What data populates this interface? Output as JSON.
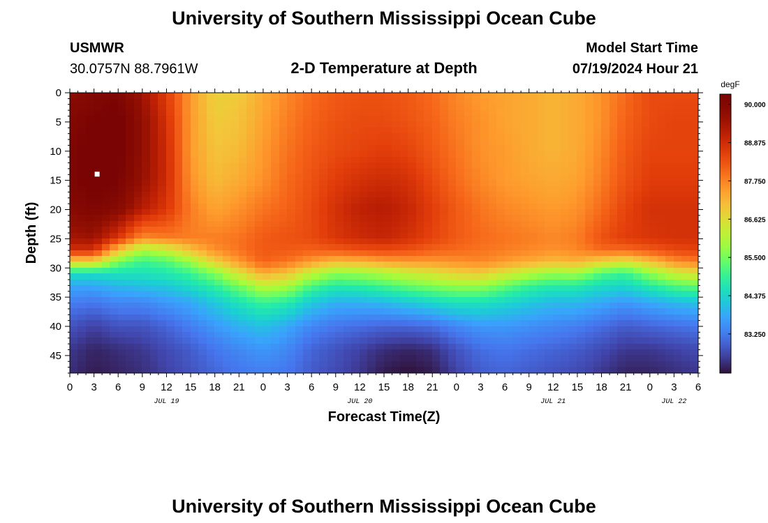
{
  "header": {
    "title": "University of Southern Mississippi Ocean Cube",
    "station": "USMWR",
    "location": "30.0757N  88.7961W",
    "model_start_label": "Model Start Time",
    "model_start_value": "07/19/2024 Hour 21"
  },
  "footer": {
    "title": "University of Southern Mississippi Ocean Cube"
  },
  "chart_data": {
    "type": "heatmap",
    "title": "2-D Temperature at Depth",
    "xlabel": "Forecast Time(Z)",
    "ylabel": "Depth (ft)",
    "units": "degF",
    "x_hours_range": [
      0,
      78
    ],
    "x_ticks": [
      {
        "hour": 0,
        "label": "0"
      },
      {
        "hour": 3,
        "label": "3"
      },
      {
        "hour": 6,
        "label": "6"
      },
      {
        "hour": 9,
        "label": "9"
      },
      {
        "hour": 12,
        "label": "12"
      },
      {
        "hour": 15,
        "label": "15"
      },
      {
        "hour": 18,
        "label": "18"
      },
      {
        "hour": 21,
        "label": "21"
      },
      {
        "hour": 24,
        "label": "0"
      },
      {
        "hour": 27,
        "label": "3"
      },
      {
        "hour": 30,
        "label": "6"
      },
      {
        "hour": 33,
        "label": "9"
      },
      {
        "hour": 36,
        "label": "12"
      },
      {
        "hour": 39,
        "label": "15"
      },
      {
        "hour": 42,
        "label": "18"
      },
      {
        "hour": 45,
        "label": "21"
      },
      {
        "hour": 48,
        "label": "0"
      },
      {
        "hour": 51,
        "label": "3"
      },
      {
        "hour": 54,
        "label": "6"
      },
      {
        "hour": 57,
        "label": "9"
      },
      {
        "hour": 60,
        "label": "12"
      },
      {
        "hour": 63,
        "label": "15"
      },
      {
        "hour": 66,
        "label": "18"
      },
      {
        "hour": 69,
        "label": "21"
      },
      {
        "hour": 72,
        "label": "0"
      },
      {
        "hour": 75,
        "label": "3"
      },
      {
        "hour": 78,
        "label": "6"
      }
    ],
    "date_labels": [
      {
        "hour": 12,
        "label": "JUL 19"
      },
      {
        "hour": 36,
        "label": "JUL 20"
      },
      {
        "hour": 60,
        "label": "JUL 21"
      },
      {
        "hour": 75,
        "label": "JUL 22"
      }
    ],
    "y_range_ft": [
      0,
      48
    ],
    "y_ticks": [
      0,
      5,
      10,
      15,
      20,
      25,
      30,
      35,
      40,
      45
    ],
    "colorbar": {
      "min": 82.1,
      "max": 90.3,
      "tick_values": [
        90.0,
        88.875,
        87.75,
        86.625,
        85.5,
        84.375,
        83.25
      ],
      "tick_labels": [
        "90.000",
        "88.875",
        "87.750",
        "86.625",
        "85.500",
        "84.375",
        "83.250"
      ]
    },
    "marker": {
      "hour": 3,
      "depth_ft": 14
    },
    "profile_time_hours": [
      0,
      3,
      6,
      9,
      12,
      15,
      18,
      21,
      24,
      27,
      30,
      33,
      36,
      39,
      42,
      45,
      48,
      51,
      54,
      57,
      60,
      63,
      66,
      69,
      72,
      75,
      78
    ],
    "profile_depth_ft": [
      0,
      5,
      10,
      15,
      20,
      25,
      27,
      29,
      31,
      33,
      36,
      40,
      44,
      48
    ],
    "profiles": [
      [
        89.8,
        90.0,
        90.1,
        90.1,
        89.9,
        89.4,
        88.8,
        86.8,
        84.5,
        83.8,
        83.3,
        82.8,
        82.5,
        82.4
      ],
      [
        90.0,
        90.2,
        90.3,
        90.3,
        90.1,
        89.5,
        88.8,
        86.8,
        84.5,
        83.8,
        83.2,
        82.6,
        82.3,
        82.2
      ],
      [
        90.1,
        90.3,
        90.3,
        90.2,
        89.9,
        88.7,
        87.0,
        85.5,
        84.6,
        84.0,
        83.4,
        82.8,
        82.4,
        82.3
      ],
      [
        89.5,
        89.7,
        89.7,
        89.6,
        89.2,
        87.6,
        85.9,
        85.0,
        84.6,
        84.1,
        83.4,
        82.8,
        82.5,
        82.4
      ],
      [
        88.6,
        88.8,
        88.9,
        88.9,
        88.7,
        87.8,
        86.2,
        85.2,
        84.7,
        84.2,
        83.6,
        83.0,
        82.7,
        82.6
      ],
      [
        87.5,
        87.5,
        87.5,
        87.6,
        87.8,
        87.8,
        87.0,
        85.8,
        85.0,
        84.5,
        83.8,
        83.3,
        82.9,
        82.8
      ],
      [
        86.8,
        86.9,
        87.0,
        87.1,
        87.4,
        87.8,
        87.6,
        86.8,
        85.6,
        84.9,
        84.2,
        83.6,
        83.2,
        83.0
      ],
      [
        86.9,
        87.0,
        87.1,
        87.3,
        87.6,
        87.9,
        87.9,
        87.5,
        86.5,
        85.5,
        84.6,
        83.9,
        83.4,
        83.2
      ],
      [
        87.3,
        87.4,
        87.5,
        87.6,
        87.9,
        88.2,
        88.2,
        88.1,
        87.3,
        86.2,
        85.0,
        84.1,
        83.6,
        83.3
      ],
      [
        87.7,
        87.8,
        87.9,
        88.0,
        88.1,
        88.3,
        88.2,
        87.9,
        87.0,
        86.0,
        84.8,
        83.8,
        83.4,
        83.2
      ],
      [
        88.0,
        88.1,
        88.2,
        88.3,
        88.4,
        88.4,
        88.1,
        87.5,
        86.2,
        85.2,
        84.2,
        83.4,
        83.0,
        82.9
      ],
      [
        88.2,
        88.3,
        88.4,
        88.6,
        88.8,
        88.7,
        88.2,
        87.1,
        85.7,
        84.8,
        83.9,
        83.2,
        82.8,
        82.7
      ],
      [
        88.3,
        88.4,
        88.5,
        88.8,
        89.1,
        88.9,
        88.3,
        87.2,
        85.8,
        84.9,
        83.9,
        83.1,
        82.6,
        82.5
      ],
      [
        88.3,
        88.4,
        88.6,
        88.9,
        89.2,
        89.0,
        88.4,
        87.4,
        86.0,
        85.1,
        84.0,
        83.0,
        82.4,
        82.2
      ],
      [
        88.2,
        88.3,
        88.5,
        88.8,
        89.0,
        88.8,
        88.3,
        87.5,
        86.3,
        85.4,
        84.2,
        83.0,
        82.3,
        82.1
      ],
      [
        88.0,
        88.1,
        88.2,
        88.4,
        88.6,
        88.5,
        88.1,
        87.5,
        86.5,
        85.6,
        84.4,
        83.1,
        82.4,
        82.2
      ],
      [
        87.7,
        87.8,
        87.9,
        88.0,
        88.2,
        88.2,
        88.0,
        87.6,
        86.8,
        85.8,
        84.6,
        83.4,
        82.8,
        82.6
      ],
      [
        87.5,
        87.6,
        87.6,
        87.7,
        87.9,
        88.0,
        87.9,
        87.7,
        86.9,
        85.8,
        84.6,
        83.6,
        83.1,
        82.9
      ],
      [
        87.4,
        87.4,
        87.5,
        87.5,
        87.7,
        87.9,
        87.8,
        87.5,
        86.5,
        85.4,
        84.4,
        83.6,
        83.2,
        83.0
      ],
      [
        87.3,
        87.3,
        87.3,
        87.4,
        87.6,
        87.8,
        87.7,
        87.3,
        86.1,
        85.0,
        84.2,
        83.5,
        83.1,
        82.9
      ],
      [
        87.2,
        87.2,
        87.2,
        87.3,
        87.5,
        87.7,
        87.6,
        87.1,
        85.8,
        84.8,
        84.0,
        83.4,
        83.0,
        82.8
      ],
      [
        87.3,
        87.3,
        87.3,
        87.4,
        87.6,
        87.8,
        87.7,
        87.2,
        85.9,
        84.8,
        84.0,
        83.3,
        82.9,
        82.7
      ],
      [
        87.6,
        87.6,
        87.7,
        87.8,
        88.0,
        88.3,
        88.0,
        86.8,
        85.2,
        84.5,
        83.8,
        83.1,
        82.7,
        82.5
      ],
      [
        88.0,
        88.1,
        88.2,
        88.3,
        88.5,
        88.6,
        88.0,
        86.5,
        85.0,
        84.4,
        83.6,
        82.9,
        82.5,
        82.3
      ],
      [
        88.4,
        88.4,
        88.5,
        88.6,
        88.8,
        88.7,
        88.2,
        87.0,
        85.7,
        84.8,
        83.8,
        83.0,
        82.5,
        82.3
      ],
      [
        88.4,
        88.5,
        88.5,
        88.6,
        88.8,
        88.8,
        88.4,
        87.6,
        86.3,
        85.2,
        84.0,
        83.1,
        82.6,
        82.4
      ],
      [
        88.4,
        88.5,
        88.5,
        88.6,
        88.8,
        88.8,
        88.5,
        87.8,
        86.6,
        85.4,
        84.1,
        83.2,
        82.7,
        82.5
      ]
    ]
  }
}
